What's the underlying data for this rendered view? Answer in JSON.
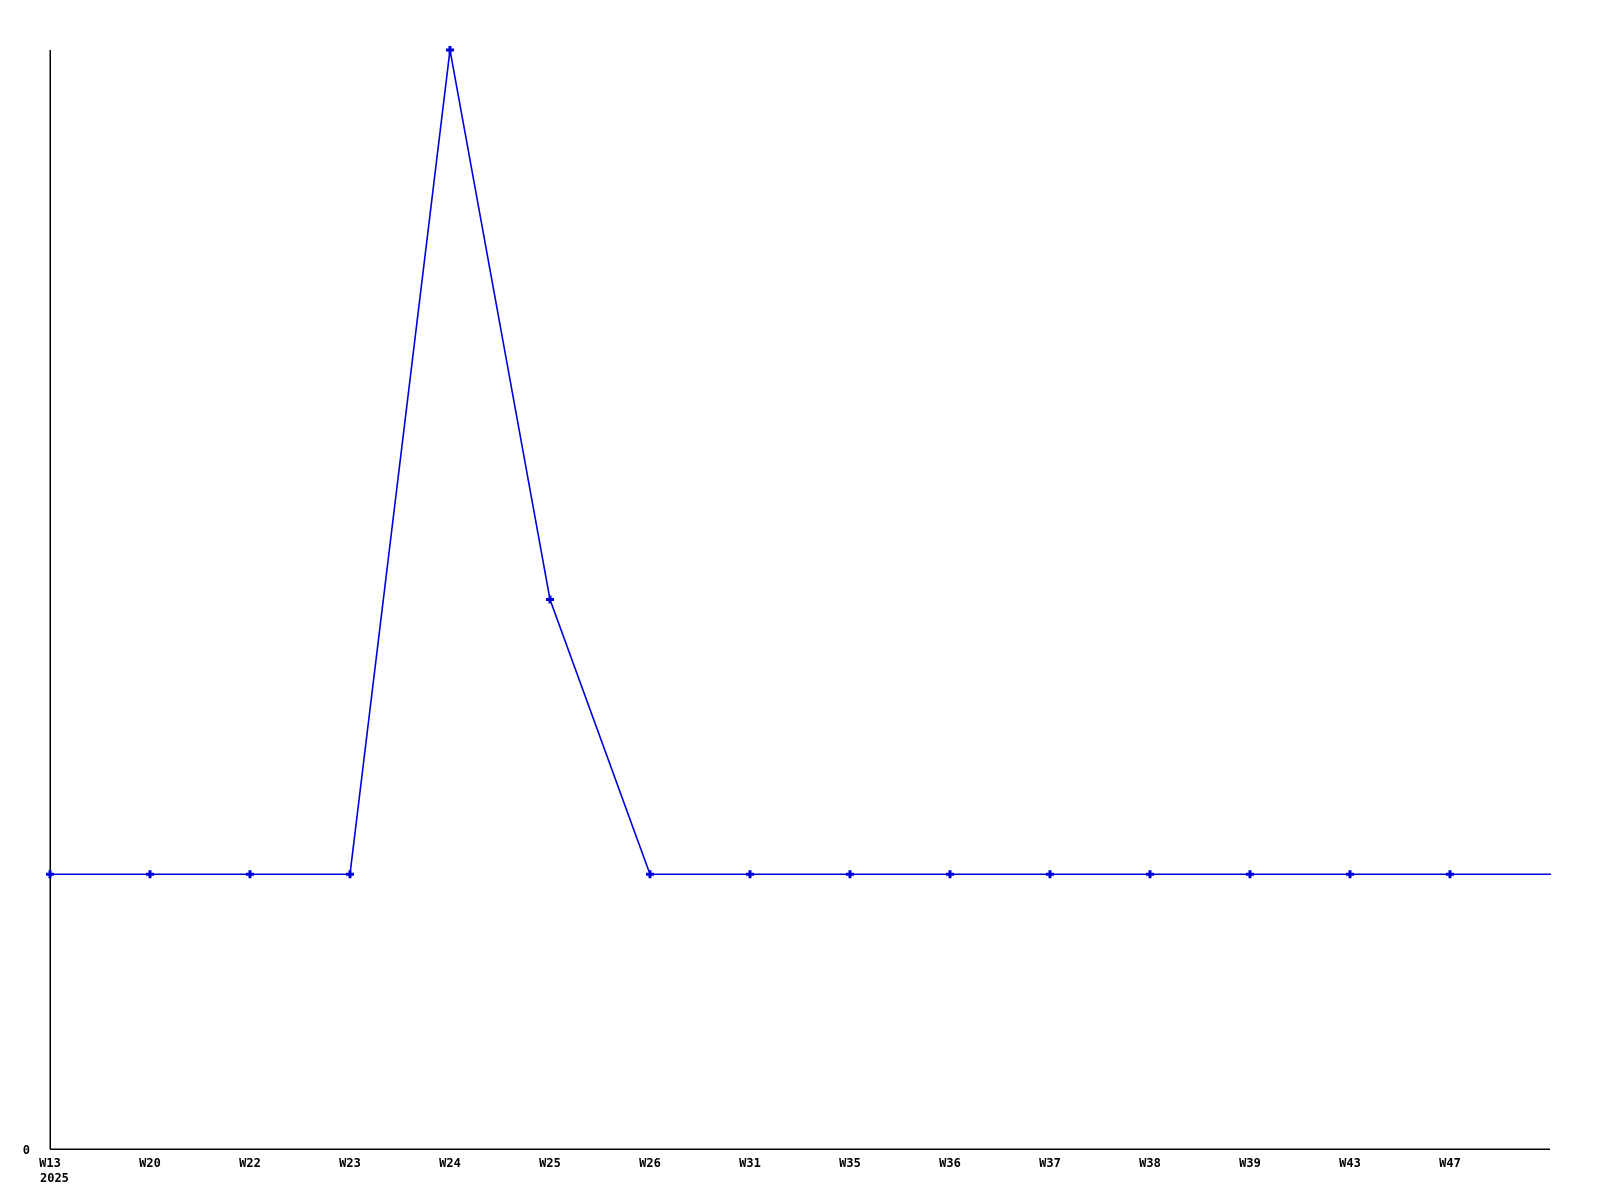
{
  "chart": {
    "background_color": "#ffffff",
    "axis_color": "#000000",
    "series_color": "#0000dd",
    "text_color": "#000000",
    "marker_style": "plus-cross",
    "year_label": "2025",
    "y_zero_label": "0"
  },
  "chart_data": {
    "type": "line",
    "title": "",
    "xlabel": "",
    "ylabel": "",
    "categories": [
      "W13",
      "W20",
      "W22",
      "W23",
      "W24",
      "W25",
      "W26",
      "W31",
      "W35",
      "W36",
      "W37",
      "W38",
      "W39",
      "W43",
      "W47"
    ],
    "values": [
      1,
      1,
      1,
      1,
      4,
      2,
      1,
      1,
      1,
      1,
      1,
      1,
      1,
      1,
      1
    ],
    "year_label": "2025",
    "y_tick_labels": [
      "0"
    ],
    "ylim": [
      0,
      4
    ],
    "grid": false,
    "legend": "none",
    "markers": "plus",
    "line_extends_flat_to_right_edge": true,
    "notes": "Flat baseline value 1 for all weeks except peak 4 at W24 and 2 at W25; only y tick labeled is 0 at the x-axis baseline."
  }
}
